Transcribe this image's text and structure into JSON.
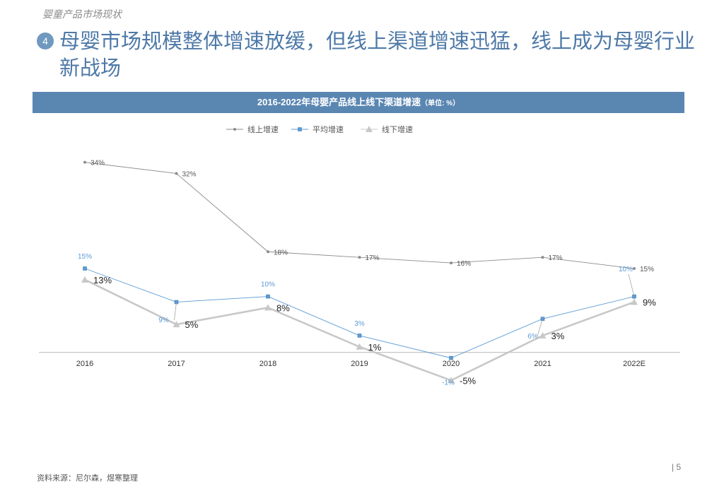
{
  "header": {
    "section_label": "婴童产品市场现状",
    "badge": "4",
    "headline": "母婴市场规模整体增速放缓，但线上渠道增速迅猛，线上成为母婴行业新战场"
  },
  "footer": {
    "source": "资料来源：尼尔森，煜寒整理",
    "page": "|  5"
  },
  "chart_data": {
    "type": "line",
    "title": "2016-2022年母婴产品线上线下渠道增速",
    "unit": "（单位: %）",
    "categories": [
      "2016",
      "2017",
      "2018",
      "2019",
      "2020",
      "2021",
      "2022E"
    ],
    "series": [
      {
        "name": "线上增速",
        "values": [
          34,
          32,
          18,
          17,
          16,
          17,
          15
        ],
        "color": "#8c8c8c",
        "marker": "dot"
      },
      {
        "name": "平均增速",
        "values": [
          15,
          9,
          10,
          3,
          -1,
          6,
          10
        ],
        "color": "#5b9bd5",
        "marker": "square"
      },
      {
        "name": "线下增速",
        "values": [
          13,
          5,
          8,
          1,
          -5,
          3,
          9
        ],
        "color": "#c8c8c8",
        "marker": "triangle"
      }
    ],
    "ylim": [
      -8,
      38
    ],
    "legend_position": "top",
    "grid": false
  }
}
